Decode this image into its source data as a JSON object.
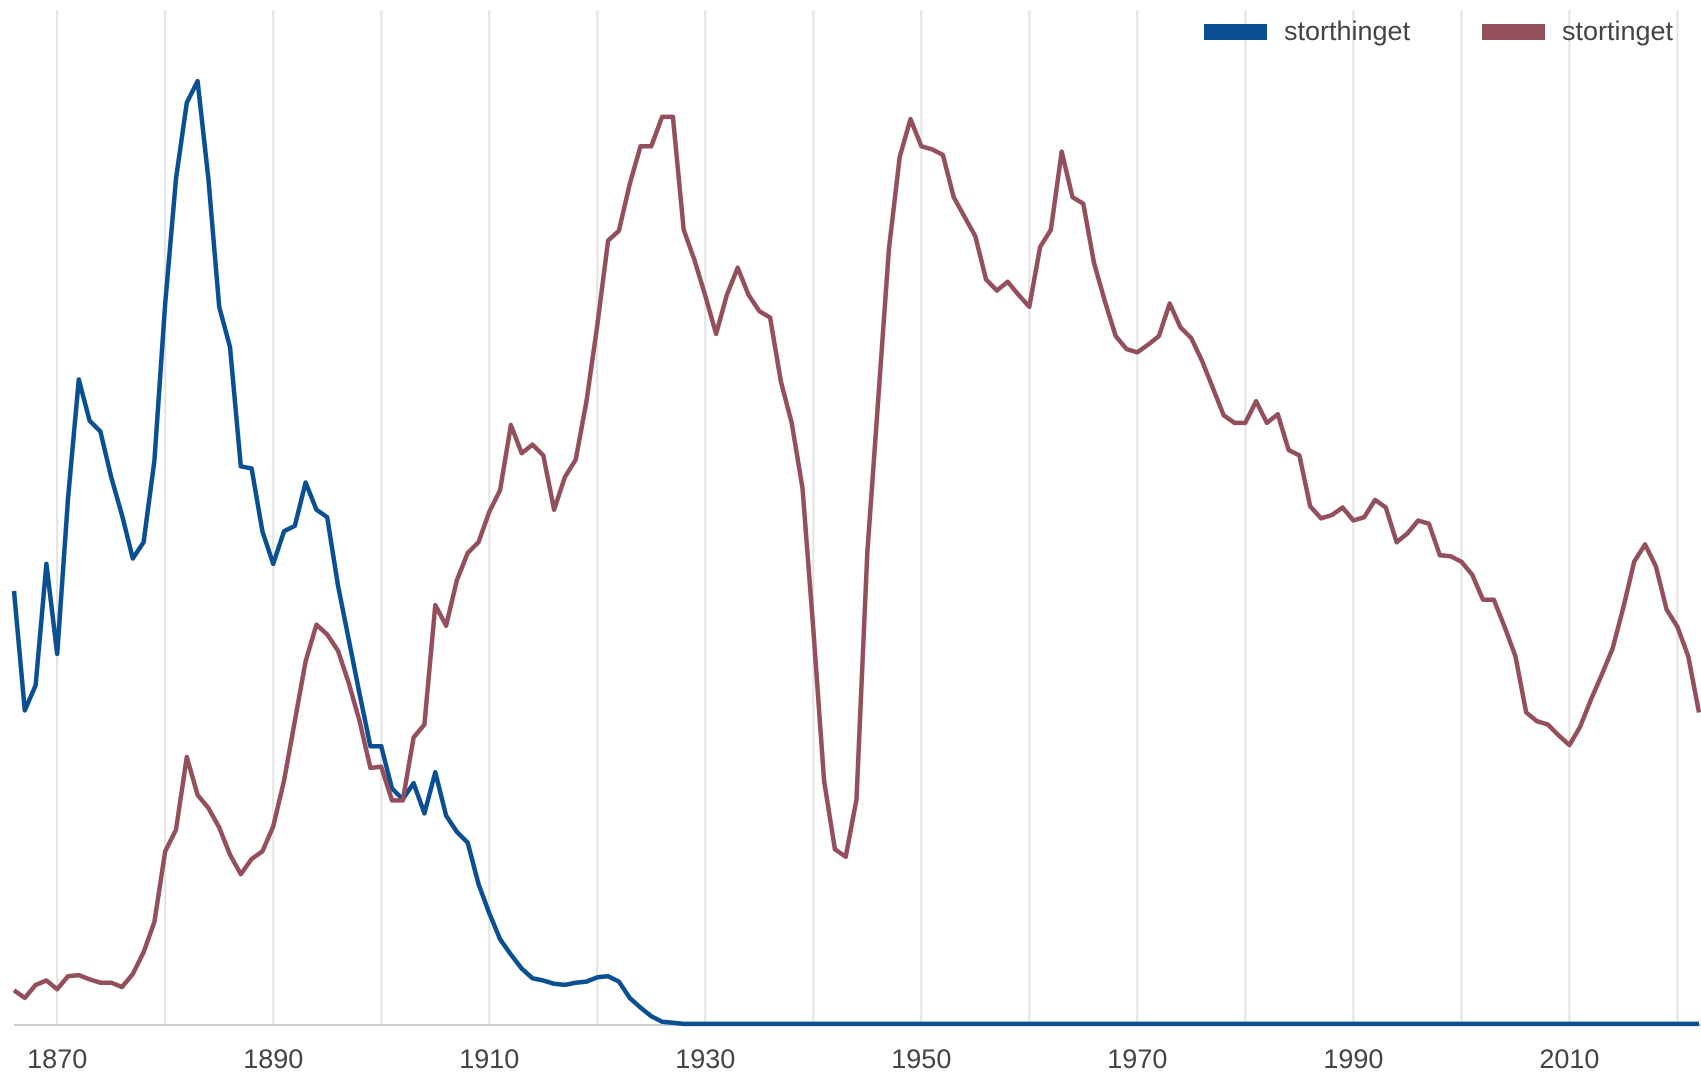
{
  "chart_data": {
    "type": "line",
    "x": [
      1866,
      1867,
      1868,
      1869,
      1870,
      1871,
      1872,
      1873,
      1874,
      1875,
      1876,
      1877,
      1878,
      1879,
      1880,
      1881,
      1882,
      1883,
      1884,
      1885,
      1886,
      1887,
      1888,
      1889,
      1890,
      1891,
      1892,
      1893,
      1894,
      1895,
      1896,
      1897,
      1898,
      1899,
      1900,
      1901,
      1902,
      1903,
      1904,
      1905,
      1906,
      1907,
      1908,
      1909,
      1910,
      1911,
      1912,
      1913,
      1914,
      1915,
      1916,
      1917,
      1918,
      1919,
      1920,
      1921,
      1922,
      1923,
      1924,
      1925,
      1926,
      1927,
      1928,
      1929,
      1930,
      1931,
      1932,
      1933,
      1934,
      1935,
      1936,
      1937,
      1938,
      1939,
      1940,
      1941,
      1942,
      1943,
      1944,
      1945,
      1946,
      1947,
      1948,
      1949,
      1950,
      1951,
      1952,
      1953,
      1954,
      1955,
      1956,
      1957,
      1958,
      1959,
      1960,
      1961,
      1962,
      1963,
      1964,
      1965,
      1966,
      1967,
      1968,
      1969,
      1970,
      1971,
      1972,
      1973,
      1974,
      1975,
      1976,
      1977,
      1978,
      1979,
      1980,
      1981,
      1982,
      1983,
      1984,
      1985,
      1986,
      1987,
      1988,
      1989,
      1990,
      1991,
      1992,
      1993,
      1994,
      1995,
      1996,
      1997,
      1998,
      1999,
      2000,
      2001,
      2002,
      2003,
      2004,
      2005,
      2006,
      2007,
      2008,
      2009,
      2010,
      2011,
      2012,
      2013,
      2014,
      2015,
      2016,
      2017,
      2018,
      2019,
      2020,
      2021,
      2022
    ],
    "series": [
      {
        "name": "storthinget",
        "color": "#0b4f93",
        "values": [
          400,
          290,
          313,
          425,
          342,
          485,
          595,
          557,
          547,
          505,
          470,
          430,
          445,
          520,
          665,
          780,
          850,
          870,
          780,
          662,
          625,
          515,
          513,
          455,
          425,
          455,
          460,
          500,
          475,
          468,
          405,
          355,
          305,
          257,
          257,
          218,
          208,
          223,
          195,
          233,
          193,
          178,
          168,
          130,
          103,
          79,
          65,
          52,
          43,
          41,
          38,
          37,
          39,
          40,
          44,
          45,
          40,
          25,
          16,
          8,
          3,
          2,
          1,
          1,
          1,
          1,
          1,
          1,
          1,
          1,
          1,
          1,
          1,
          1,
          1,
          1,
          1,
          1,
          1,
          1,
          1,
          1,
          1,
          1,
          1,
          1,
          1,
          1,
          1,
          1,
          1,
          1,
          1,
          1,
          1,
          1,
          1,
          1,
          1,
          1,
          1,
          1,
          1,
          1,
          1,
          1,
          1,
          1,
          1,
          1,
          1,
          1,
          1,
          1,
          1,
          1,
          1,
          1,
          1,
          1,
          1,
          1,
          1,
          1,
          1,
          1,
          1,
          1,
          1,
          1,
          1,
          1,
          1,
          1,
          1,
          1,
          1,
          1,
          1,
          1,
          1,
          1,
          1,
          1,
          1,
          1,
          1,
          1,
          1,
          1,
          1,
          1,
          1,
          1,
          1,
          1,
          1
        ]
      },
      {
        "name": "stortinget",
        "color": "#944f5d",
        "values": [
          32,
          25,
          37,
          41,
          33,
          45,
          46,
          42,
          39,
          39,
          35,
          47,
          67,
          95,
          160,
          180,
          247,
          212,
          200,
          182,
          157,
          139,
          153,
          160,
          183,
          225,
          280,
          335,
          369,
          360,
          345,
          315,
          280,
          237,
          238,
          207,
          207,
          265,
          277,
          387,
          368,
          410,
          435,
          445,
          473,
          493,
          553,
          527,
          535,
          525,
          475,
          505,
          521,
          575,
          645,
          723,
          732,
          775,
          810,
          810,
          837,
          837,
          733,
          705,
          672,
          637,
          673,
          698,
          673,
          658,
          652,
          593,
          555,
          495,
          365,
          225,
          162,
          155,
          208,
          435,
          575,
          715,
          800,
          835,
          810,
          807,
          802,
          763,
          745,
          727,
          687,
          677,
          685,
          673,
          662,
          717,
          733,
          805,
          763,
          757,
          702,
          667,
          635,
          623,
          620,
          627,
          635,
          665,
          643,
          633,
          612,
          587,
          562,
          555,
          555,
          575,
          555,
          563,
          530,
          525,
          478,
          467,
          470,
          477,
          465,
          468,
          484,
          477,
          445,
          453,
          465,
          462,
          433,
          432,
          427,
          415,
          392,
          392,
          367,
          340,
          288,
          280,
          277,
          267,
          258,
          275,
          300,
          323,
          347,
          385,
          427,
          443,
          423,
          383,
          367,
          340,
          288
        ]
      }
    ],
    "xlim": [
      1866,
      2022
    ],
    "xticks": [
      1870,
      1890,
      1910,
      1930,
      1950,
      1970,
      1990,
      2010
    ],
    "xgrid": [
      1870,
      1880,
      1890,
      1900,
      1910,
      1920,
      1930,
      1940,
      1950,
      1960,
      1970,
      1980,
      1990,
      2000,
      2010,
      2020
    ],
    "ylim": [
      0,
      930
    ],
    "legend": "top-right"
  }
}
